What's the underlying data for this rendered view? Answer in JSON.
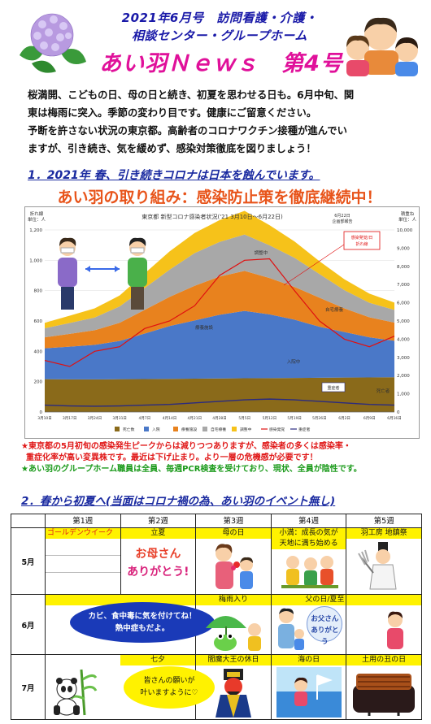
{
  "header": {
    "line1": "2021年6月号　訪問看護・介護・",
    "line2": "相談センター・グループホーム",
    "title": "あい羽Ｎｅｗｓ　第4号"
  },
  "intro": [
    "桜満開、こどもの日、母の日と続き、初夏を思わせる日も。6月中旬、関",
    "東は梅雨に突入。季節の変わり目です。健康にご留意ください。",
    "予断を許さない状況の東京都。高齢者のコロナワクチン接種が進んでい",
    "ますが、引き続き、気を緩めず、感染対策徹底を図りましょう！"
  ],
  "section1": {
    "heading": "1．2021年 春、引き続きコロナは日本を蝕んでいます。",
    "subheading": "あい羽の取り組み：感染防止策を徹底継続中！"
  },
  "chart_data": {
    "type": "area",
    "title": "東京都 新型コロナ感染者状況('21 3月10日～6月22日)",
    "left_axis_label_1": "折れ線",
    "left_axis_label_2": "単位：人",
    "right_axis_label_1": "積重ね",
    "right_axis_label_2": "単位：人",
    "date_note_1": "6月22日",
    "date_note_2": "企画部報告",
    "ylim_left": [
      0,
      1200
    ],
    "ylim_right": [
      0,
      10000
    ],
    "yticks_left": [
      "1,200",
      "1,000",
      "800",
      "600",
      "400",
      "200",
      "0"
    ],
    "yticks_right": [
      "10,000",
      "9,000",
      "8,000",
      "7,000",
      "6,000",
      "5,000",
      "4,000",
      "3,000",
      "2,000",
      "1,000",
      "0"
    ],
    "x": [
      "3月10日",
      "3月17日",
      "3月24日",
      "3月31日",
      "4月7日",
      "4月14日",
      "4月21日",
      "4月28日",
      "5月5日",
      "5月12日",
      "5月19日",
      "5月26日",
      "6月2日",
      "6月9日",
      "6月16日"
    ],
    "stack_series": [
      {
        "name": "死亡数",
        "color": "#8a6a1a",
        "values": [
          1800,
          1790,
          1790,
          1800,
          1810,
          1820,
          1830,
          1840,
          1850,
          1860,
          1870,
          1880,
          1890,
          1900,
          1910
        ]
      },
      {
        "name": "入院",
        "color": "#4a78c8",
        "values": [
          1700,
          1800,
          1900,
          2100,
          2500,
          2900,
          3200,
          3500,
          3700,
          3500,
          3200,
          2800,
          2500,
          2200,
          2000
        ]
      },
      {
        "name": "療養施設",
        "color": "#e8821e",
        "values": [
          600,
          700,
          800,
          1000,
          1300,
          1600,
          1900,
          2100,
          2200,
          2000,
          1800,
          1600,
          1300,
          1100,
          1000
        ]
      },
      {
        "name": "自宅療養",
        "color": "#a8a8a8",
        "values": [
          500,
          600,
          700,
          900,
          1200,
          1500,
          1800,
          1900,
          2000,
          1800,
          1600,
          1300,
          1000,
          800,
          700
        ]
      },
      {
        "name": "調整中",
        "color": "#f6c21a",
        "values": [
          300,
          400,
          500,
          600,
          800,
          1000,
          1100,
          1200,
          1300,
          1100,
          900,
          700,
          600,
          500,
          400
        ]
      }
    ],
    "line_series": [
      {
        "name": "感染発覚",
        "color": "#e01010",
        "values": [
          340,
          300,
          400,
          430,
          550,
          600,
          700,
          900,
          1000,
          1010,
          800,
          600,
          480,
          430,
          500
        ]
      },
      {
        "name": "重症者",
        "color": "#2a2a80",
        "values": [
          45,
          40,
          38,
          40,
          45,
          50,
          60,
          70,
          80,
          85,
          80,
          70,
          60,
          50,
          45
        ]
      }
    ],
    "stack_labels": {
      "cyousei": "調整中",
      "jitaku": "自宅療養",
      "ryouyou": "療養施設",
      "nyuuin": "入院中",
      "shibou": "死亡者"
    },
    "legend": [
      "死亡数",
      "入院",
      "療養施設",
      "自宅療養",
      "調整中",
      "感染発覚",
      "重症者"
    ],
    "callout_1": "感染発覚/日",
    "callout_2": "折れ線",
    "callout_sev": "重症者"
  },
  "notes": {
    "red_1": "★東京都の5月初旬の感染発生ピークからは減りつつありますが、感染者の多くは感染率・",
    "red_2": "重症化率が高い変異株です。最近は下げ止まり。より一層の危機感が必要です！",
    "green": "★あい羽のグループホーム職員は全員、毎週PCR検査を受けており、現状、全員が陰性です。"
  },
  "section2": {
    "heading": "2．春から初夏へ(当面はコロナ禍の為、あい羽のイベント無し)"
  },
  "calendar": {
    "weeks": [
      "第1週",
      "第2週",
      "第3週",
      "第4週",
      "第5週"
    ],
    "months": [
      "5月",
      "6月",
      "7月"
    ],
    "may": [
      "ゴールデンウイーク",
      "立夏",
      "母の日",
      "小満：成長の気が",
      "羽工房 地鎮祭"
    ],
    "may_2": "天地に満ち始める",
    "may_card_1": "お母さん",
    "may_card_2": "ありがとう!",
    "june": [
      "",
      "",
      "梅雨入り",
      "父の日/夏至",
      ""
    ],
    "june_bubble_1": "カビ、食中毒に気を付けてね！",
    "june_bubble_2": "熱中症もだよ。",
    "june_card_1": "お父さん",
    "june_card_2": "ありがとう",
    "july": [
      "",
      "七夕",
      "閻魔大王の休日",
      "海の日",
      "土用の丑の日"
    ],
    "july_bubble_1": "皆さんの願いが",
    "july_bubble_2": "叶いますように♡"
  },
  "colors": {
    "title_pink": "#e0109a",
    "heading_blue": "#1a2aa0",
    "orange": "#e8541a",
    "event_yellow": "#fff200"
  }
}
